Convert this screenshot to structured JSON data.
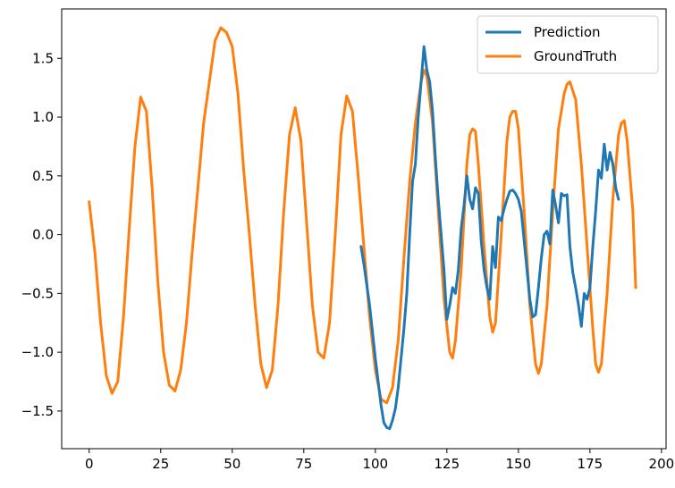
{
  "chart_data": {
    "type": "line",
    "title": "",
    "xlabel": "",
    "ylabel": "",
    "xlim": [
      -9.6,
      201.6
    ],
    "ylim": [
      -1.82,
      1.92
    ],
    "xticks": [
      0,
      25,
      50,
      75,
      100,
      125,
      150,
      175,
      200
    ],
    "yticks": [
      -1.5,
      -1.0,
      -0.5,
      0.0,
      0.5,
      1.0,
      1.5
    ],
    "xtick_labels": [
      "0",
      "25",
      "50",
      "75",
      "100",
      "125",
      "150",
      "175",
      "200"
    ],
    "ytick_labels": [
      "−1.5",
      "−1.0",
      "−0.5",
      "0.0",
      "0.5",
      "1.0",
      "1.5"
    ],
    "grid": false,
    "legend_position": "top-right",
    "series": [
      {
        "name": "GroundTruth",
        "color": "#ff7f0e",
        "points": [
          [
            0,
            0.28
          ],
          [
            2,
            -0.15
          ],
          [
            4,
            -0.75
          ],
          [
            6,
            -1.2
          ],
          [
            8,
            -1.35
          ],
          [
            10,
            -1.25
          ],
          [
            12,
            -0.7
          ],
          [
            14,
            0.05
          ],
          [
            16,
            0.75
          ],
          [
            18,
            1.17
          ],
          [
            20,
            1.05
          ],
          [
            22,
            0.4
          ],
          [
            24,
            -0.4
          ],
          [
            26,
            -1.0
          ],
          [
            28,
            -1.28
          ],
          [
            30,
            -1.33
          ],
          [
            32,
            -1.15
          ],
          [
            34,
            -0.75
          ],
          [
            36,
            -0.15
          ],
          [
            38,
            0.4
          ],
          [
            40,
            0.95
          ],
          [
            42,
            1.3
          ],
          [
            44,
            1.65
          ],
          [
            46,
            1.76
          ],
          [
            48,
            1.72
          ],
          [
            50,
            1.6
          ],
          [
            52,
            1.2
          ],
          [
            54,
            0.55
          ],
          [
            56,
            0.0
          ],
          [
            58,
            -0.6
          ],
          [
            60,
            -1.1
          ],
          [
            62,
            -1.3
          ],
          [
            64,
            -1.15
          ],
          [
            66,
            -0.6
          ],
          [
            68,
            0.2
          ],
          [
            70,
            0.85
          ],
          [
            72,
            1.08
          ],
          [
            74,
            0.8
          ],
          [
            76,
            0.1
          ],
          [
            78,
            -0.6
          ],
          [
            80,
            -1.0
          ],
          [
            82,
            -1.05
          ],
          [
            84,
            -0.75
          ],
          [
            86,
            0.0
          ],
          [
            88,
            0.85
          ],
          [
            90,
            1.18
          ],
          [
            92,
            1.05
          ],
          [
            94,
            0.5
          ],
          [
            96,
            -0.1
          ],
          [
            98,
            -0.7
          ],
          [
            100,
            -1.15
          ],
          [
            102,
            -1.4
          ],
          [
            104,
            -1.43
          ],
          [
            106,
            -1.3
          ],
          [
            108,
            -0.9
          ],
          [
            110,
            -0.2
          ],
          [
            112,
            0.45
          ],
          [
            114,
            0.95
          ],
          [
            116,
            1.3
          ],
          [
            117,
            1.4
          ],
          [
            118,
            1.35
          ],
          [
            120,
            0.95
          ],
          [
            122,
            0.2
          ],
          [
            124,
            -0.55
          ],
          [
            126,
            -1.0
          ],
          [
            127,
            -1.05
          ],
          [
            128,
            -0.9
          ],
          [
            130,
            -0.3
          ],
          [
            132,
            0.6
          ],
          [
            133,
            0.85
          ],
          [
            134,
            0.9
          ],
          [
            135,
            0.88
          ],
          [
            136,
            0.6
          ],
          [
            138,
            -0.1
          ],
          [
            140,
            -0.7
          ],
          [
            141,
            -0.83
          ],
          [
            142,
            -0.75
          ],
          [
            144,
            0.0
          ],
          [
            146,
            0.8
          ],
          [
            147,
            1.0
          ],
          [
            148,
            1.05
          ],
          [
            149,
            1.05
          ],
          [
            150,
            0.9
          ],
          [
            152,
            0.2
          ],
          [
            154,
            -0.6
          ],
          [
            156,
            -1.1
          ],
          [
            157,
            -1.18
          ],
          [
            158,
            -1.1
          ],
          [
            160,
            -0.6
          ],
          [
            162,
            0.2
          ],
          [
            164,
            0.9
          ],
          [
            166,
            1.2
          ],
          [
            167,
            1.28
          ],
          [
            168,
            1.3
          ],
          [
            170,
            1.15
          ],
          [
            172,
            0.6
          ],
          [
            174,
            -0.1
          ],
          [
            176,
            -0.8
          ],
          [
            177,
            -1.1
          ],
          [
            178,
            -1.17
          ],
          [
            179,
            -1.1
          ],
          [
            181,
            -0.5
          ],
          [
            183,
            0.3
          ],
          [
            185,
            0.85
          ],
          [
            186,
            0.95
          ],
          [
            187,
            0.97
          ],
          [
            188,
            0.8
          ],
          [
            190,
            0.2
          ],
          [
            191,
            -0.45
          ]
        ]
      },
      {
        "name": "Prediction",
        "color": "#1f77b4",
        "points": [
          [
            95,
            -0.1
          ],
          [
            96,
            -0.25
          ],
          [
            98,
            -0.6
          ],
          [
            100,
            -1.05
          ],
          [
            102,
            -1.45
          ],
          [
            103,
            -1.6
          ],
          [
            104,
            -1.64
          ],
          [
            105,
            -1.65
          ],
          [
            106,
            -1.58
          ],
          [
            107,
            -1.48
          ],
          [
            108,
            -1.3
          ],
          [
            109,
            -1.05
          ],
          [
            110,
            -0.8
          ],
          [
            111,
            -0.5
          ],
          [
            112,
            0.0
          ],
          [
            113,
            0.45
          ],
          [
            114,
            0.6
          ],
          [
            115,
            1.0
          ],
          [
            116,
            1.3
          ],
          [
            117,
            1.6
          ],
          [
            118,
            1.4
          ],
          [
            119,
            1.3
          ],
          [
            120,
            1.05
          ],
          [
            121,
            0.65
          ],
          [
            122,
            0.3
          ],
          [
            123,
            0.0
          ],
          [
            124,
            -0.3
          ],
          [
            125,
            -0.72
          ],
          [
            126,
            -0.6
          ],
          [
            127,
            -0.45
          ],
          [
            128,
            -0.5
          ],
          [
            129,
            -0.3
          ],
          [
            130,
            0.05
          ],
          [
            131,
            0.25
          ],
          [
            132,
            0.5
          ],
          [
            133,
            0.3
          ],
          [
            134,
            0.22
          ],
          [
            135,
            0.4
          ],
          [
            136,
            0.35
          ],
          [
            137,
            -0.05
          ],
          [
            138,
            -0.3
          ],
          [
            139,
            -0.45
          ],
          [
            140,
            -0.55
          ],
          [
            141,
            -0.1
          ],
          [
            142,
            -0.28
          ],
          [
            143,
            0.15
          ],
          [
            144,
            0.12
          ],
          [
            145,
            0.22
          ],
          [
            146,
            0.3
          ],
          [
            147,
            0.37
          ],
          [
            148,
            0.38
          ],
          [
            149,
            0.35
          ],
          [
            150,
            0.3
          ],
          [
            151,
            0.2
          ],
          [
            152,
            -0.05
          ],
          [
            153,
            -0.3
          ],
          [
            154,
            -0.55
          ],
          [
            155,
            -0.7
          ],
          [
            156,
            -0.68
          ],
          [
            157,
            -0.45
          ],
          [
            158,
            -0.2
          ],
          [
            159,
            0.0
          ],
          [
            160,
            0.03
          ],
          [
            161,
            -0.08
          ],
          [
            162,
            0.38
          ],
          [
            163,
            0.25
          ],
          [
            164,
            0.1
          ],
          [
            165,
            0.35
          ],
          [
            166,
            0.33
          ],
          [
            167,
            0.34
          ],
          [
            168,
            -0.1
          ],
          [
            169,
            -0.32
          ],
          [
            170,
            -0.45
          ],
          [
            171,
            -0.6
          ],
          [
            172,
            -0.78
          ],
          [
            173,
            -0.5
          ],
          [
            174,
            -0.55
          ],
          [
            175,
            -0.45
          ],
          [
            176,
            -0.1
          ],
          [
            177,
            0.2
          ],
          [
            178,
            0.55
          ],
          [
            179,
            0.48
          ],
          [
            180,
            0.77
          ],
          [
            181,
            0.55
          ],
          [
            182,
            0.7
          ],
          [
            183,
            0.6
          ],
          [
            184,
            0.4
          ],
          [
            185,
            0.3
          ]
        ]
      }
    ]
  },
  "legend": {
    "entries": [
      {
        "label": "Prediction",
        "color": "#1f77b4"
      },
      {
        "label": "GroundTruth",
        "color": "#ff7f0e"
      }
    ]
  }
}
